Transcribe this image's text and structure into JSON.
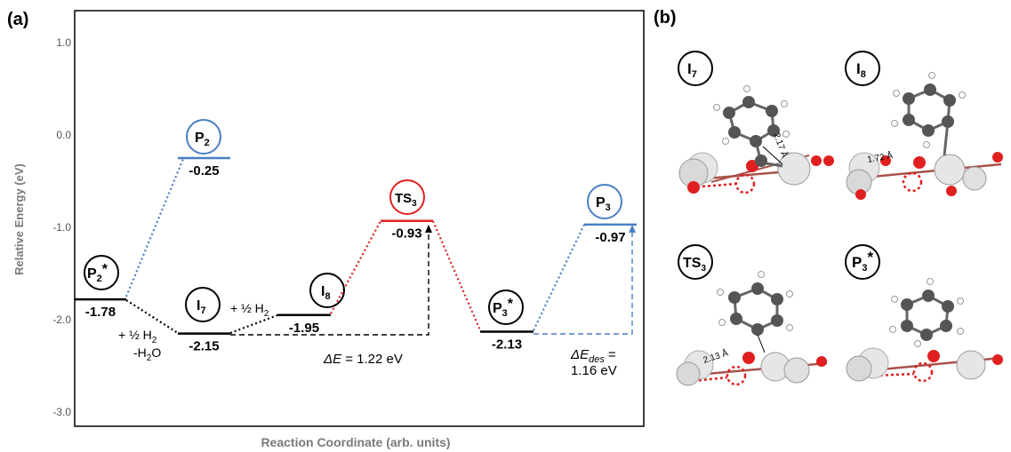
{
  "panel_a": {
    "label": "(a)",
    "y_axis_label": "Relative Energy (eV)",
    "x_axis_label": "Reaction Coordinate (arb. units)",
    "y_ticks": [
      "1.0",
      "0.0",
      "-1.0",
      "-2.0",
      "-3.0"
    ]
  },
  "panel_b": {
    "label": "(b)"
  },
  "colors": {
    "black": "#000000",
    "blue": "#4a7fc4",
    "red": "#e02020",
    "dark": "#1a1a1a"
  },
  "chart_data": {
    "type": "energy-diagram",
    "ylim": [
      -3.0,
      1.0
    ],
    "levels": [
      {
        "name": "P2*",
        "energy": -1.78,
        "label": "-1.78",
        "color": "black"
      },
      {
        "name": "P2",
        "energy": -0.25,
        "label": "-0.25",
        "color": "blue"
      },
      {
        "name": "I7",
        "energy": -2.15,
        "label": "-2.15",
        "color": "black"
      },
      {
        "name": "I8",
        "energy": -1.95,
        "label": "-1.95",
        "color": "black"
      },
      {
        "name": "TS3",
        "energy": -0.93,
        "label": "-0.93",
        "color": "red"
      },
      {
        "name": "P3*",
        "energy": -2.13,
        "label": "-2.13",
        "color": "black"
      },
      {
        "name": "P3",
        "energy": -0.97,
        "label": "-0.97",
        "color": "blue"
      }
    ],
    "annotations": {
      "step1_a": "+ ½ H",
      "step1_a_sub": "2",
      "step1_b": "-H",
      "step1_b_sub": "2",
      "step1_b_end": "O",
      "step2": "+ ½ H",
      "step2_sub": "2",
      "delta_e": "= 1.22 eV",
      "delta_e_sym": "ΔE",
      "delta_edes_sym": "ΔE",
      "delta_edes_sub": "des",
      "delta_edes_eq": "=",
      "delta_edes_val": "1.16 eV"
    }
  },
  "structures": [
    {
      "main": "I",
      "sub": "7",
      "distance": "2.17 Å"
    },
    {
      "main": "I",
      "sub": "8",
      "distance": "1.72 Å"
    },
    {
      "main": "TS",
      "sub": "3",
      "distance": "2.13 Å"
    },
    {
      "main": "P",
      "sub": "3",
      "sup": "*"
    }
  ]
}
